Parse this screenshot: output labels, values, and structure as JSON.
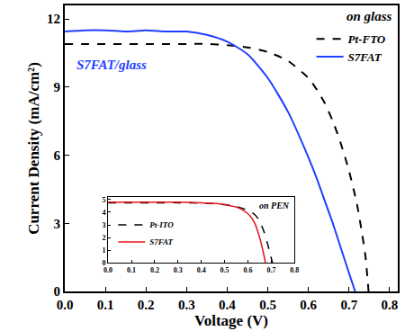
{
  "chart_data": [
    {
      "type": "line",
      "x_label": "Voltage (V)",
      "y_label": "Current Density (mA/cm²)",
      "annotations": [
        "on glass",
        "S7FAT/glass"
      ],
      "xlim": [
        0,
        0.82
      ],
      "ylim": [
        0,
        12.6
      ],
      "xticks": [
        {
          "value": 0,
          "label": "0.0"
        },
        0.1,
        0.2,
        0.3,
        0.4,
        0.5,
        0.6,
        0.7,
        0.8
      ],
      "yticks": [
        0,
        3,
        6,
        9,
        12
      ],
      "legend": "upper right",
      "series": [
        {
          "name": "Pt-FTO",
          "color": "#000000",
          "line_style": "dash",
          "x": [
            0,
            0.05,
            0.1,
            0.15,
            0.2,
            0.25,
            0.3,
            0.35,
            0.4,
            0.45,
            0.5,
            0.55,
            0.6,
            0.62,
            0.64,
            0.66,
            0.68,
            0.7,
            0.72,
            0.74,
            0.748
          ],
          "values": [
            10.9,
            10.9,
            10.9,
            10.9,
            10.9,
            10.9,
            10.9,
            10.9,
            10.85,
            10.75,
            10.55,
            10.15,
            9.4,
            8.9,
            8.3,
            7.5,
            6.5,
            5.3,
            3.8,
            1.6,
            0
          ]
        },
        {
          "name": "S7FAT",
          "color": "#1f3fff",
          "line_style": "solid",
          "x": [
            0,
            0.05,
            0.1,
            0.15,
            0.2,
            0.25,
            0.3,
            0.35,
            0.4,
            0.45,
            0.5,
            0.55,
            0.6,
            0.62,
            0.64,
            0.66,
            0.68,
            0.7,
            0.715
          ],
          "values": [
            11.45,
            11.5,
            11.5,
            11.45,
            11.5,
            11.45,
            11.45,
            11.3,
            11.0,
            10.45,
            9.4,
            7.9,
            5.9,
            5.0,
            4.0,
            3.0,
            1.9,
            0.8,
            0
          ]
        }
      ]
    },
    {
      "type": "line",
      "annotations": [
        "on PEN"
      ],
      "xlim": [
        0,
        0.8
      ],
      "ylim": [
        0,
        5.2
      ],
      "xticks": [
        {
          "value": 0,
          "label": "0.0"
        },
        0.1,
        0.2,
        0.3,
        0.4,
        0.5,
        0.6,
        0.7,
        0.8
      ],
      "yticks": [
        0,
        1,
        2,
        3,
        4,
        5
      ],
      "legend": "lower left",
      "series": [
        {
          "name": "Pt-ITO",
          "color": "#000000",
          "line_style": "dash",
          "x": [
            0,
            0.1,
            0.2,
            0.3,
            0.4,
            0.45,
            0.5,
            0.55,
            0.6,
            0.63,
            0.65,
            0.67,
            0.69,
            0.705
          ],
          "values": [
            4.75,
            4.75,
            4.75,
            4.75,
            4.72,
            4.68,
            4.6,
            4.45,
            4.15,
            3.8,
            3.3,
            2.4,
            1.1,
            0
          ]
        },
        {
          "name": "S7FAT",
          "color": "#e8141c",
          "line_style": "solid",
          "x": [
            0,
            0.1,
            0.2,
            0.3,
            0.4,
            0.45,
            0.5,
            0.55,
            0.58,
            0.61,
            0.63,
            0.65,
            0.665,
            0.675
          ],
          "values": [
            4.8,
            4.8,
            4.8,
            4.8,
            4.75,
            4.7,
            4.6,
            4.4,
            4.15,
            3.7,
            3.1,
            2.0,
            0.9,
            0
          ]
        }
      ]
    }
  ]
}
